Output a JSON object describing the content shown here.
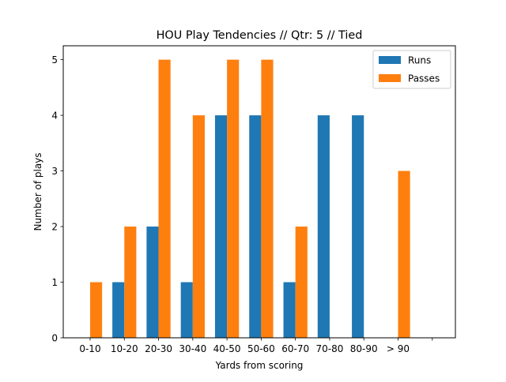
{
  "chart_data": {
    "type": "bar",
    "title": "HOU Play Tendencies // Qtr: 5 // Tied",
    "xlabel": "Yards from scoring",
    "ylabel": "Number of plays",
    "categories": [
      "0-10",
      "10-20",
      "20-30",
      "30-40",
      "40-50",
      "50-60",
      "60-70",
      "70-80",
      "80-90",
      "> 90"
    ],
    "series": [
      {
        "name": "Runs",
        "color": "#1f77b4",
        "values": [
          0,
          1,
          2,
          1,
          4,
          4,
          1,
          4,
          4,
          0
        ]
      },
      {
        "name": "Passes",
        "color": "#ff7f0e",
        "values": [
          1,
          2,
          5,
          4,
          5,
          5,
          2,
          0,
          0,
          3
        ]
      }
    ],
    "yticks": [
      0,
      1,
      2,
      3,
      4,
      5
    ],
    "ylim": [
      0,
      5.25
    ],
    "grid": false,
    "legend": "top-right"
  }
}
